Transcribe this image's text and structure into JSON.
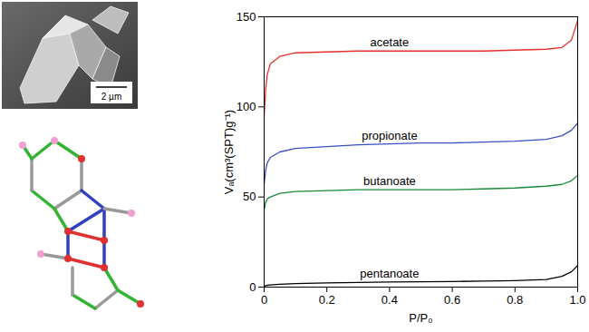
{
  "chart_data": {
    "type": "line",
    "x": [
      0,
      0.005,
      0.01,
      0.02,
      0.05,
      0.1,
      0.2,
      0.3,
      0.4,
      0.5,
      0.6,
      0.7,
      0.8,
      0.9,
      0.95,
      0.98,
      1.0
    ],
    "series": [
      {
        "name": "acetate",
        "color": "#e8302a",
        "values": [
          95,
          110,
          118,
          124,
          128,
          130,
          130.5,
          131,
          131,
          131,
          131,
          131,
          131.5,
          132,
          133,
          137,
          148
        ]
      },
      {
        "name": "propionate",
        "color": "#3a4fc4",
        "values": [
          57,
          65,
          69,
          72,
          75,
          77,
          78,
          79,
          79.5,
          80,
          80,
          80.5,
          81,
          82,
          84,
          87,
          91
        ]
      },
      {
        "name": "butanoate",
        "color": "#1a8a3a",
        "values": [
          43,
          47,
          49,
          50,
          52,
          53,
          53.5,
          54,
          54,
          54,
          54,
          54.5,
          55,
          56,
          57,
          59,
          62
        ]
      },
      {
        "name": "pentanoate",
        "color": "#000000",
        "values": [
          0.5,
          0.8,
          1,
          1.2,
          1.6,
          2,
          2.3,
          2.6,
          2.8,
          3,
          3.1,
          3.3,
          3.6,
          4.2,
          6,
          8.5,
          12
        ]
      }
    ],
    "x_label": "P/P₀",
    "y_label": "Vₐ(cm³(SPT)g⁻¹)",
    "xlim": [
      0,
      1.0
    ],
    "xticks": [
      0,
      0.2,
      0.4,
      0.6,
      0.8,
      {
        "value": 1.0,
        "label": "1.0"
      }
    ],
    "ylim": [
      0,
      150
    ],
    "yticks": [
      0,
      50,
      100,
      150
    ],
    "grid": false
  },
  "images": {
    "sem_scale_bar": "2 µm"
  }
}
